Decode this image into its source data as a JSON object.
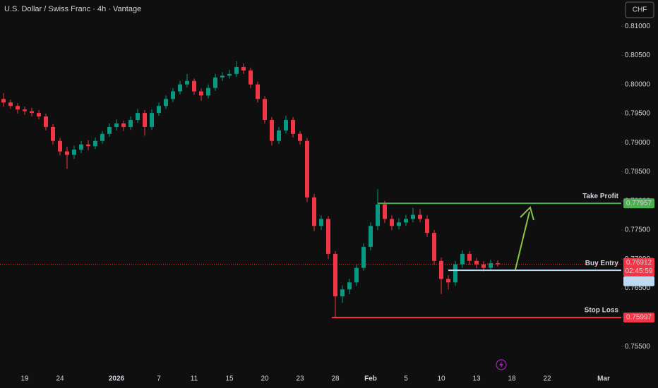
{
  "header": {
    "title": "U.S. Dollar / Swiss Franc · 4h · Vantage",
    "currency": "CHF"
  },
  "chart_data": {
    "type": "candlestick",
    "categories": [
      null,
      null,
      null,
      "19",
      null,
      null,
      null,
      null,
      "24",
      null,
      null,
      null,
      null,
      null,
      null,
      null,
      "2026",
      null,
      null,
      null,
      null,
      null,
      "7",
      null,
      null,
      null,
      null,
      "11",
      null,
      null,
      null,
      null,
      "15",
      null,
      null,
      null,
      null,
      "20",
      null,
      null,
      null,
      null,
      "23",
      null,
      null,
      null,
      null,
      "28",
      null,
      null,
      null,
      null,
      "Feb",
      null,
      null,
      null,
      null,
      "5",
      null,
      null,
      null,
      null,
      "10",
      null,
      null,
      null,
      null,
      "13",
      null,
      null,
      null,
      null,
      "18",
      null,
      null,
      null,
      null,
      "22",
      null,
      null,
      null,
      null,
      null,
      null,
      null,
      "Mar",
      null,
      null
    ],
    "ohlc": [
      [
        0.7975,
        0.7985,
        0.7962,
        0.7969
      ],
      [
        0.7969,
        0.7974,
        0.7958,
        0.7963
      ],
      [
        0.7963,
        0.7968,
        0.795,
        0.7957
      ],
      [
        0.7957,
        0.7962,
        0.7948,
        0.7954
      ],
      [
        0.7954,
        0.796,
        0.7945,
        0.7951
      ],
      [
        0.7951,
        0.7956,
        0.794,
        0.7945
      ],
      [
        0.7945,
        0.795,
        0.7921,
        0.7927
      ],
      [
        0.7927,
        0.7932,
        0.7897,
        0.7903
      ],
      [
        0.7903,
        0.7908,
        0.7878,
        0.7885
      ],
      [
        0.7885,
        0.7893,
        0.7855,
        0.7879
      ],
      [
        0.7879,
        0.7895,
        0.7872,
        0.7888
      ],
      [
        0.7888,
        0.7903,
        0.7882,
        0.7897
      ],
      [
        0.7897,
        0.7904,
        0.7887,
        0.7894
      ],
      [
        0.7894,
        0.7909,
        0.7889,
        0.7903
      ],
      [
        0.7903,
        0.792,
        0.7898,
        0.7915
      ],
      [
        0.7915,
        0.7933,
        0.791,
        0.7927
      ],
      [
        0.7927,
        0.794,
        0.7921,
        0.7933
      ],
      [
        0.7933,
        0.7938,
        0.792,
        0.7927
      ],
      [
        0.7927,
        0.7945,
        0.7922,
        0.7939
      ],
      [
        0.7939,
        0.7958,
        0.7934,
        0.7951
      ],
      [
        0.7951,
        0.7956,
        0.7912,
        0.7927
      ],
      [
        0.7927,
        0.7957,
        0.7922,
        0.7951
      ],
      [
        0.7951,
        0.7969,
        0.7946,
        0.7963
      ],
      [
        0.7963,
        0.7981,
        0.7958,
        0.7975
      ],
      [
        0.7975,
        0.7994,
        0.797,
        0.7988
      ],
      [
        0.7988,
        0.8006,
        0.7983,
        0.8
      ],
      [
        0.8,
        0.8018,
        0.7995,
        0.8006
      ],
      [
        0.8006,
        0.801,
        0.7982,
        0.7988
      ],
      [
        0.7988,
        0.7993,
        0.7972,
        0.7981
      ],
      [
        0.7981,
        0.8,
        0.7976,
        0.7994
      ],
      [
        0.7994,
        0.8018,
        0.7989,
        0.8012
      ],
      [
        0.8012,
        0.8021,
        0.8006,
        0.8015
      ],
      [
        0.8015,
        0.8025,
        0.801,
        0.8018
      ],
      [
        0.8018,
        0.804,
        0.8013,
        0.803
      ],
      [
        0.803,
        0.8036,
        0.8018,
        0.8024
      ],
      [
        0.8024,
        0.8029,
        0.7994,
        0.8
      ],
      [
        0.8,
        0.8005,
        0.7969,
        0.7975
      ],
      [
        0.7975,
        0.798,
        0.7933,
        0.7939
      ],
      [
        0.7939,
        0.7944,
        0.7895,
        0.7903
      ],
      [
        0.7903,
        0.7927,
        0.7898,
        0.7921
      ],
      [
        0.7921,
        0.7946,
        0.7916,
        0.7939
      ],
      [
        0.7939,
        0.7944,
        0.7909,
        0.7915
      ],
      [
        0.7915,
        0.792,
        0.7897,
        0.7903
      ],
      [
        0.7903,
        0.7908,
        0.7798,
        0.7806
      ],
      [
        0.7806,
        0.7812,
        0.7748,
        0.7757
      ],
      [
        0.7757,
        0.7775,
        0.775,
        0.7769
      ],
      [
        0.7769,
        0.7774,
        0.77,
        0.7709
      ],
      [
        0.7709,
        0.7714,
        0.76,
        0.7636
      ],
      [
        0.7636,
        0.7655,
        0.7625,
        0.7648
      ],
      [
        0.7648,
        0.7666,
        0.764,
        0.766
      ],
      [
        0.766,
        0.769,
        0.7654,
        0.7685
      ],
      [
        0.7685,
        0.7727,
        0.768,
        0.7721
      ],
      [
        0.7721,
        0.7763,
        0.7715,
        0.7757
      ],
      [
        0.7757,
        0.782,
        0.775,
        0.7794
      ],
      [
        0.7794,
        0.78,
        0.7762,
        0.7769
      ],
      [
        0.7769,
        0.7775,
        0.775,
        0.7757
      ],
      [
        0.7757,
        0.777,
        0.7751,
        0.7763
      ],
      [
        0.7763,
        0.7776,
        0.7757,
        0.7769
      ],
      [
        0.7769,
        0.7788,
        0.7763,
        0.7776
      ],
      [
        0.7776,
        0.7786,
        0.7763,
        0.7769
      ],
      [
        0.7769,
        0.7775,
        0.7738,
        0.7745
      ],
      [
        0.7745,
        0.775,
        0.769,
        0.7697
      ],
      [
        0.7697,
        0.7703,
        0.764,
        0.7666
      ],
      [
        0.7666,
        0.7672,
        0.7648,
        0.766
      ],
      [
        0.766,
        0.7697,
        0.7654,
        0.7691
      ],
      [
        0.7691,
        0.7715,
        0.7685,
        0.7709
      ],
      [
        0.7709,
        0.7714,
        0.769,
        0.7697
      ],
      [
        0.7697,
        0.7702,
        0.7684,
        0.7691
      ],
      [
        0.7691,
        0.7697,
        0.7679,
        0.7685
      ],
      [
        0.7685,
        0.7699,
        0.768,
        0.7693
      ],
      [
        0.7693,
        0.7698,
        0.7687,
        0.76912
      ],
      null,
      null,
      null,
      null,
      null,
      null,
      null,
      null,
      null,
      null,
      null,
      null,
      null,
      null,
      null,
      null,
      null
    ],
    "up_color": "#089981",
    "down_color": "#f23645",
    "ylim": [
      0.7515,
      0.8145
    ],
    "yticks": [
      {
        "value": 0.81,
        "label": "0.81000"
      },
      {
        "value": 0.805,
        "label": "0.80500"
      },
      {
        "value": 0.8,
        "label": "0.80000"
      },
      {
        "value": 0.795,
        "label": "0.79500"
      },
      {
        "value": 0.79,
        "label": "0.79000"
      },
      {
        "value": 0.785,
        "label": "0.78500"
      },
      {
        "value": 0.78,
        "label": "0.78000"
      },
      {
        "value": 0.775,
        "label": "0.77500"
      },
      {
        "value": 0.77,
        "label": "0.77000"
      },
      {
        "value": 0.765,
        "label": "0.76500"
      },
      {
        "value": 0.76,
        "label": "0.76000"
      },
      {
        "value": 0.755,
        "label": "0.75500"
      }
    ],
    "grid": false,
    "levels": [
      {
        "name": "Take Profit",
        "value": 0.77957,
        "color": "#4caf50"
      },
      {
        "name": "Buy Entry",
        "value": 0.76808,
        "color": "#bbdaf5"
      },
      {
        "name": "Stop Loss",
        "value": 0.75997,
        "color": "#f23645"
      }
    ],
    "last_price": {
      "value": 0.76912,
      "countdown": "02:45:59",
      "color": "#f23645"
    }
  }
}
